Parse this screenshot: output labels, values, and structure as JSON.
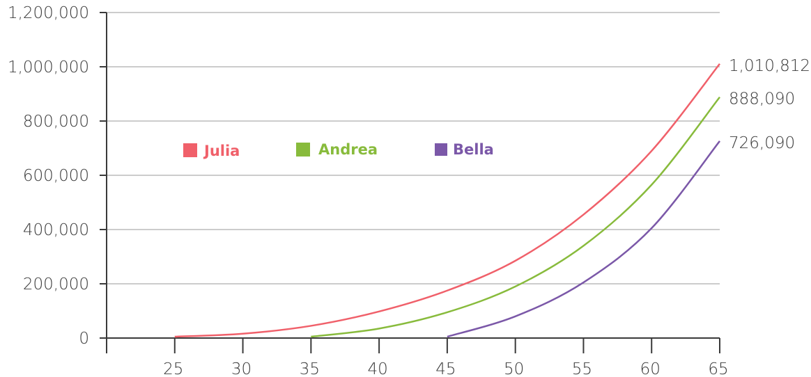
{
  "chart_data": {
    "type": "line",
    "title": "",
    "xlabel": "",
    "ylabel": "",
    "xlim": [
      20,
      65
    ],
    "ylim": [
      0,
      1200000
    ],
    "x_ticks": [
      25,
      30,
      35,
      40,
      45,
      50,
      55,
      60,
      65
    ],
    "x_tick_labels": [
      "25",
      "30",
      "35",
      "40",
      "45",
      "50",
      "55",
      "60",
      "65"
    ],
    "y_ticks": [
      0,
      200000,
      400000,
      600000,
      800000,
      1000000,
      1200000
    ],
    "y_tick_labels": [
      "0",
      "200,000",
      "400,000",
      "600,000",
      "800,000",
      "1,000,000",
      "1,200,000"
    ],
    "grid": "horizontal",
    "legend_position": "inside-left",
    "series": [
      {
        "name": "Julia",
        "color": "#f0606a",
        "end_label": "1,010,812",
        "x": [
          25,
          30,
          35,
          40,
          45,
          50,
          55,
          60,
          65
        ],
        "y": [
          5000,
          16000,
          45000,
          98000,
          175000,
          285000,
          455000,
          690000,
          1010812
        ]
      },
      {
        "name": "Andrea",
        "color": "#88bb3c",
        "end_label": "888,090",
        "x": [
          35,
          40,
          45,
          50,
          55,
          60,
          65
        ],
        "y": [
          5000,
          35000,
          95000,
          190000,
          340000,
          565000,
          888090
        ]
      },
      {
        "name": "Bella",
        "color": "#7b58a8",
        "end_label": "726,090",
        "x": [
          45,
          50,
          55,
          60,
          65
        ],
        "y": [
          5000,
          80000,
          205000,
          405000,
          726090
        ]
      }
    ]
  }
}
